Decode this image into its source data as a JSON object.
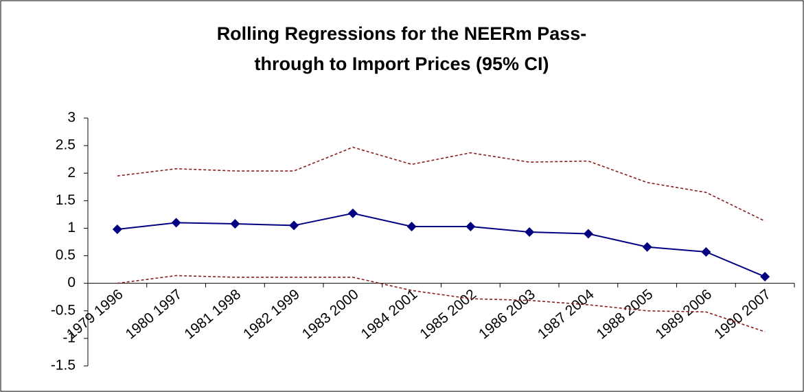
{
  "chart_data": {
    "type": "line",
    "title": [
      "Rolling Regressions for the NEERm Pass-",
      "through to Import Prices (95% CI)"
    ],
    "categories": [
      "1979 1996",
      "1980 1997",
      "1981 1998",
      "1982 1999",
      "1983 2000",
      "1984 2001",
      "1985 2002",
      "1986 2003",
      "1987 2004",
      "1988 2005",
      "1989 2006",
      "1990 2007"
    ],
    "series": [
      {
        "color": "#000080",
        "style": "solid",
        "marker": "diamond",
        "values": [
          0.98,
          1.1,
          1.08,
          1.05,
          1.27,
          1.03,
          1.03,
          0.93,
          0.9,
          0.66,
          0.57,
          0.12
        ]
      },
      {
        "color": "#8b1a1a",
        "style": "dashed",
        "values": [
          1.95,
          2.08,
          2.04,
          2.04,
          2.47,
          2.16,
          2.37,
          2.2,
          2.22,
          1.83,
          1.65,
          1.13
        ]
      },
      {
        "color": "#8b1a1a",
        "style": "dashed",
        "values": [
          0.0,
          0.14,
          0.11,
          0.11,
          0.11,
          -0.13,
          -0.28,
          -0.31,
          -0.39,
          -0.5,
          -0.52,
          -0.88
        ]
      }
    ],
    "ylim": [
      -1.5,
      3
    ],
    "yticks": [
      -1.5,
      -1,
      -0.5,
      0,
      0.5,
      1,
      1.5,
      2,
      2.5,
      3
    ],
    "grid": false
  }
}
